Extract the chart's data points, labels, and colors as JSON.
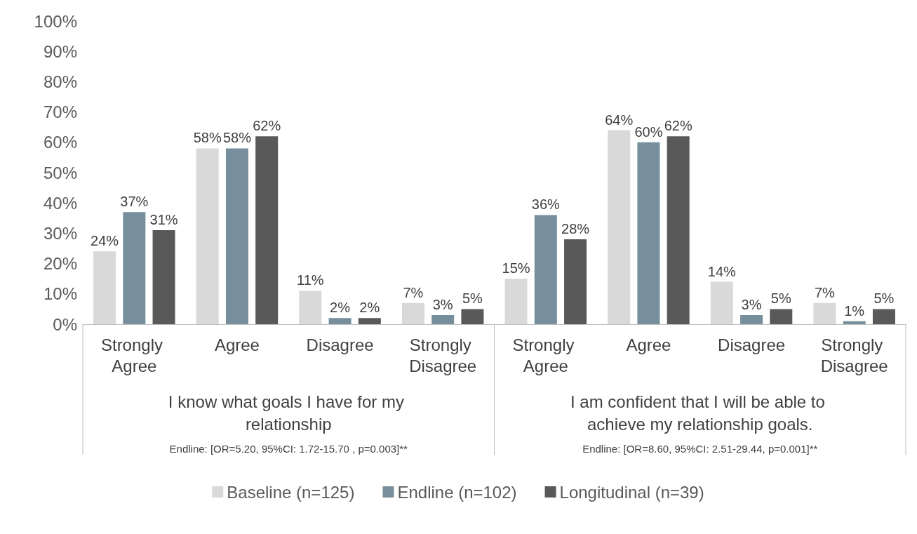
{
  "chart_data": {
    "type": "bar",
    "categories": [
      "Strongly Agree",
      "Agree",
      "Disagree",
      "Strongly Disagree",
      "Strongly Agree",
      "Agree",
      "Disagree",
      "Strongly Disagree"
    ],
    "series": [
      {
        "name": "Baseline (n=125)",
        "color": "#d9d9d9",
        "values": [
          24,
          58,
          11,
          7,
          15,
          64,
          14,
          7
        ],
        "value_labels": [
          "24%",
          "58%",
          "11%",
          "7%",
          "15%",
          "64%",
          "14%",
          "7%"
        ]
      },
      {
        "name": "Endline (n=102)",
        "color": "#778f9c",
        "values": [
          37,
          58,
          2,
          3,
          36,
          60,
          3,
          1
        ],
        "value_labels": [
          "37%",
          "58%",
          "2%",
          "3%",
          "36%",
          "60%",
          "3%",
          "1%"
        ]
      },
      {
        "name": "Longitudinal (n=39)",
        "color": "#595959",
        "values": [
          31,
          62,
          2,
          5,
          28,
          62,
          5,
          5
        ],
        "value_labels": [
          "31%",
          "62%",
          "2%",
          "5%",
          "28%",
          "62%",
          "5%",
          "5%"
        ]
      }
    ],
    "ylim": [
      0,
      100
    ],
    "yticks": [
      {
        "value": 0,
        "label": "0%"
      },
      {
        "value": 10,
        "label": "10%"
      },
      {
        "value": 20,
        "label": "20%"
      },
      {
        "value": 30,
        "label": "30%"
      },
      {
        "value": 40,
        "label": "40%"
      },
      {
        "value": 50,
        "label": "50%"
      },
      {
        "value": 60,
        "label": "60%"
      },
      {
        "value": 70,
        "label": "70%"
      },
      {
        "value": 80,
        "label": "80%"
      },
      {
        "value": 90,
        "label": "90%"
      },
      {
        "value": 100,
        "label": "100%"
      }
    ],
    "annotations": [
      "I know what goals I have for my relationship",
      "I am confident that I will be able to achieve my relationship goals.",
      "Endline: [OR=5.20, 95%CI: 1.72-15.70 , p=0.003]**",
      "Endline: [OR=8.60, 95%CI: 2.51-29.44, p=0.001]**"
    ],
    "grid": false,
    "legend": "bottom"
  }
}
